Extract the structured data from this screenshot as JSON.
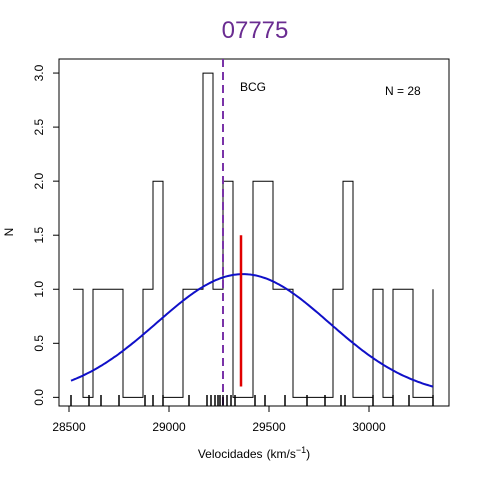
{
  "chart_data": {
    "type": "histogram",
    "title": "07775",
    "xlabel": "Velocidades",
    "xlabel_unit_base": "(km/s",
    "xlabel_unit_exp": "−1",
    "xlabel_unit_close": ")",
    "ylabel": "N",
    "xlim": [
      28450,
      30400
    ],
    "ylim": [
      -0.08,
      3.13
    ],
    "x_ticks": [
      28500,
      29000,
      29500,
      30000
    ],
    "y_ticks": [
      "0.0",
      "0.5",
      "1.0",
      "1.5",
      "2.0",
      "2.5",
      "3.0"
    ],
    "histogram_step": [
      [
        28520,
        1
      ],
      [
        28570,
        1
      ],
      [
        28570,
        0
      ],
      [
        28620,
        0
      ],
      [
        28620,
        1
      ],
      [
        28770,
        1
      ],
      [
        28770,
        0
      ],
      [
        28870,
        0
      ],
      [
        28870,
        1
      ],
      [
        28920,
        1
      ],
      [
        28920,
        2
      ],
      [
        28970,
        2
      ],
      [
        28970,
        0
      ],
      [
        29070,
        0
      ],
      [
        29070,
        1
      ],
      [
        29170,
        1
      ],
      [
        29170,
        3
      ],
      [
        29220,
        3
      ],
      [
        29220,
        1
      ],
      [
        29270,
        1
      ],
      [
        29270,
        2
      ],
      [
        29320,
        2
      ],
      [
        29320,
        0
      ],
      [
        29420,
        0
      ],
      [
        29420,
        2
      ],
      [
        29520,
        2
      ],
      [
        29520,
        1
      ],
      [
        29620,
        1
      ],
      [
        29620,
        0
      ],
      [
        29820,
        0
      ],
      [
        29820,
        1
      ],
      [
        29870,
        1
      ],
      [
        29870,
        2
      ],
      [
        29920,
        2
      ],
      [
        29920,
        0
      ],
      [
        30020,
        0
      ],
      [
        30020,
        1
      ],
      [
        30070,
        1
      ],
      [
        30070,
        0
      ],
      [
        30120,
        0
      ],
      [
        30120,
        1
      ],
      [
        30220,
        1
      ],
      [
        30220,
        0
      ],
      [
        30320,
        0
      ],
      [
        30320,
        1
      ]
    ],
    "gaussian": {
      "mean": 29370,
      "sigma": 430,
      "amplitude": 1.14,
      "x_range": [
        28510,
        30320
      ]
    },
    "bcg_velocity": 29270,
    "bcg_label": "BCG",
    "mean_marker": {
      "x": 29360,
      "y_range": [
        0.1,
        1.5
      ]
    },
    "n_label": "N =  28",
    "rug": [
      28510,
      28600,
      28660,
      28750,
      28880,
      28920,
      28970,
      29100,
      29190,
      29210,
      29230,
      29245,
      29255,
      29270,
      29290,
      29310,
      29330,
      29430,
      29480,
      29580,
      29690,
      29780,
      29860,
      29880,
      30020,
      30120,
      30200,
      30320
    ],
    "colors": {
      "title": "#6a2c91",
      "bcg_line": "#7a33a8",
      "gaussian": "#1010c8",
      "mean_marker": "#e00000",
      "histogram": "#000000"
    }
  }
}
